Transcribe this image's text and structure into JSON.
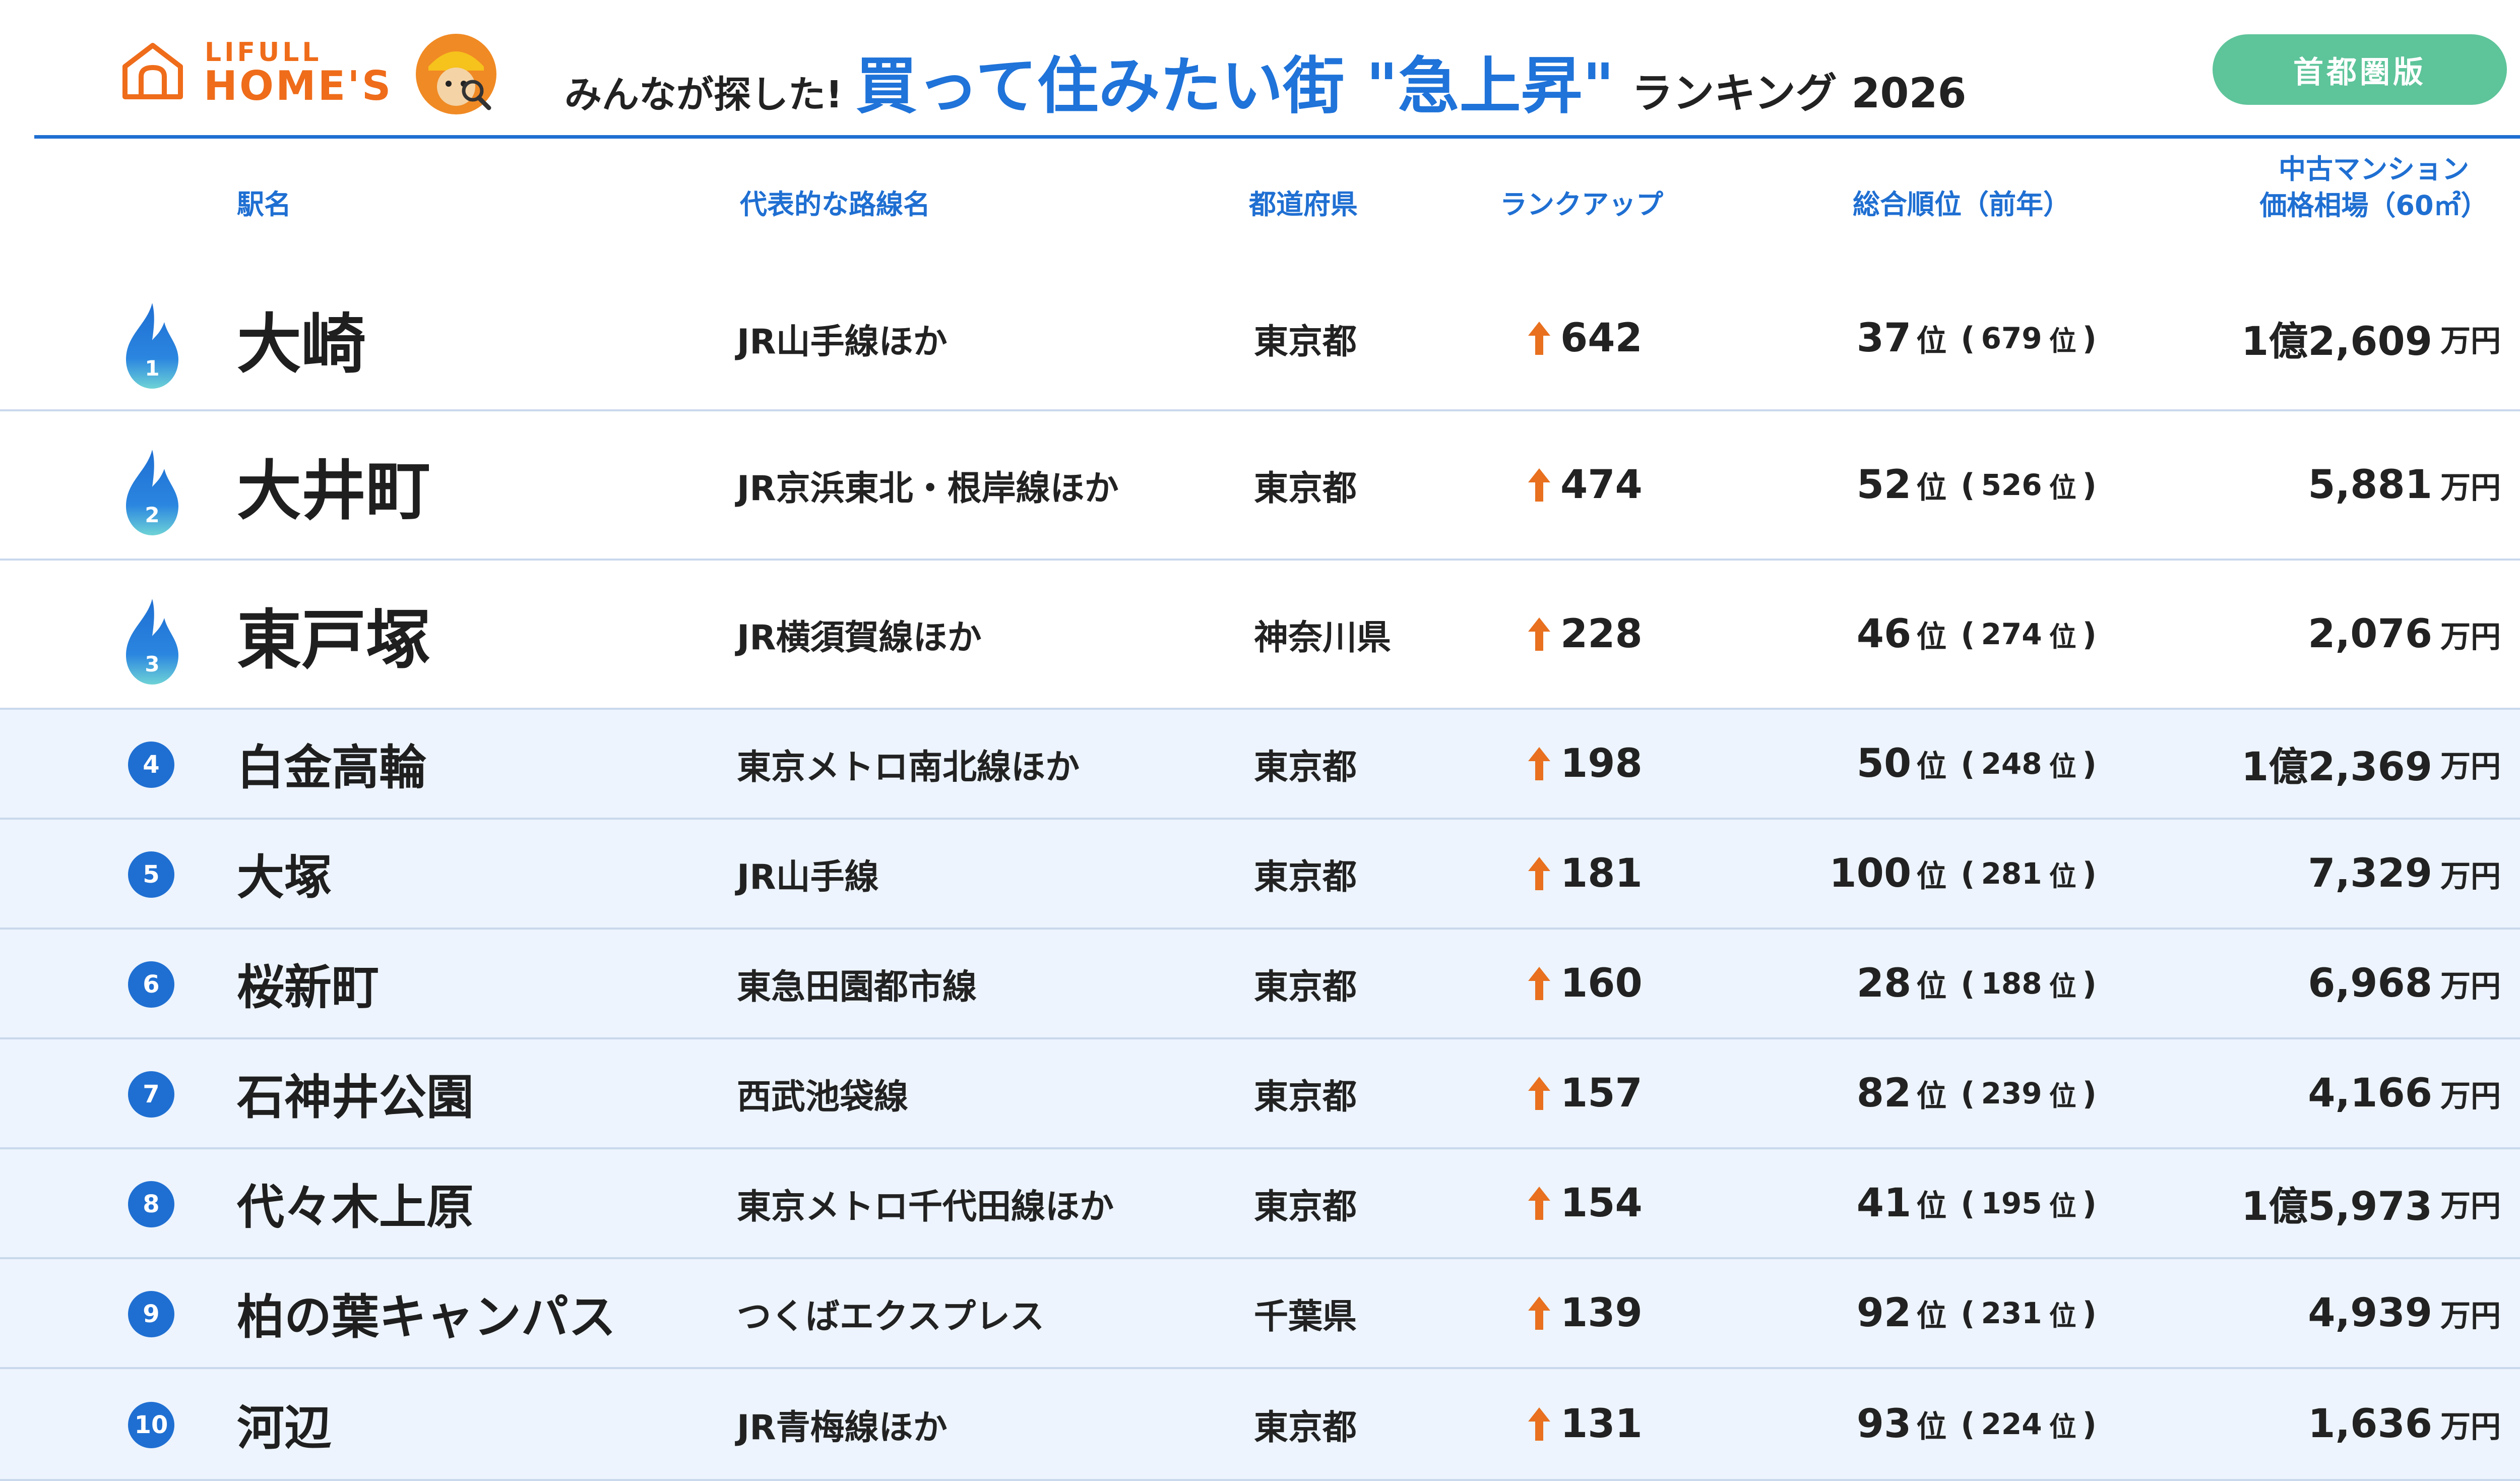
{
  "header": {
    "logo_top": "LIFULL",
    "logo_bottom": "HOME'S",
    "title_pre": "みんなが探した!",
    "title_main": "買って住みたい街 \"急上昇\"",
    "title_post": "ランキング 2026",
    "area_label": "首都圏版"
  },
  "columns": {
    "station": "駅名",
    "line": "代表的な路線名",
    "prefecture": "都道府県",
    "rank_up": "ランクアップ",
    "overall_rank": "総合順位（前年）",
    "price_line1": "中古マンション",
    "price_line2": "価格相場（60㎡）"
  },
  "colors": {
    "accent_blue": "#1f6fd2",
    "title_blue": "#1f73d9",
    "brand_orange": "#ef6c1a",
    "pill_green": "#5ec49a",
    "arrow_orange": "#e8701f",
    "row_shade": "#edf4fd"
  },
  "icons": {
    "top3": "flame-icon",
    "others": "circle-badge",
    "rank_up": "up-arrow-icon"
  },
  "units": {
    "rank": "位",
    "open_paren": "(",
    "close_paren": ")",
    "price_unit": "万円"
  },
  "rows": [
    {
      "num": "1",
      "station": "大崎",
      "line": "JR山手線ほか",
      "pref": "東京都",
      "up": "642",
      "rank": "37",
      "prev": "679",
      "price": "1億2,609"
    },
    {
      "num": "2",
      "station": "大井町",
      "line": "JR京浜東北・根岸線ほか",
      "pref": "東京都",
      "up": "474",
      "rank": "52",
      "prev": "526",
      "price": "5,881"
    },
    {
      "num": "3",
      "station": "東戸塚",
      "line": "JR横須賀線ほか",
      "pref": "神奈川県",
      "up": "228",
      "rank": "46",
      "prev": "274",
      "price": "2,076"
    },
    {
      "num": "4",
      "station": "白金高輪",
      "line": "東京メトロ南北線ほか",
      "pref": "東京都",
      "up": "198",
      "rank": "50",
      "prev": "248",
      "price": "1億2,369"
    },
    {
      "num": "5",
      "station": "大塚",
      "line": "JR山手線",
      "pref": "東京都",
      "up": "181",
      "rank": "100",
      "prev": "281",
      "price": "7,329"
    },
    {
      "num": "6",
      "station": "桜新町",
      "line": "東急田園都市線",
      "pref": "東京都",
      "up": "160",
      "rank": "28",
      "prev": "188",
      "price": "6,968"
    },
    {
      "num": "7",
      "station": "石神井公園",
      "line": "西武池袋線",
      "pref": "東京都",
      "up": "157",
      "rank": "82",
      "prev": "239",
      "price": "4,166"
    },
    {
      "num": "8",
      "station": "代々木上原",
      "line": "東京メトロ千代田線ほか",
      "pref": "東京都",
      "up": "154",
      "rank": "41",
      "prev": "195",
      "price": "1億5,973"
    },
    {
      "num": "9",
      "station": "柏の葉キャンパス",
      "line": "つくばエクスプレス",
      "pref": "千葉県",
      "up": "139",
      "rank": "92",
      "prev": "231",
      "price": "4,939"
    },
    {
      "num": "10",
      "station": "河辺",
      "line": "JR青梅線ほか",
      "pref": "東京都",
      "up": "131",
      "rank": "93",
      "prev": "224",
      "price": "1,636"
    }
  ]
}
